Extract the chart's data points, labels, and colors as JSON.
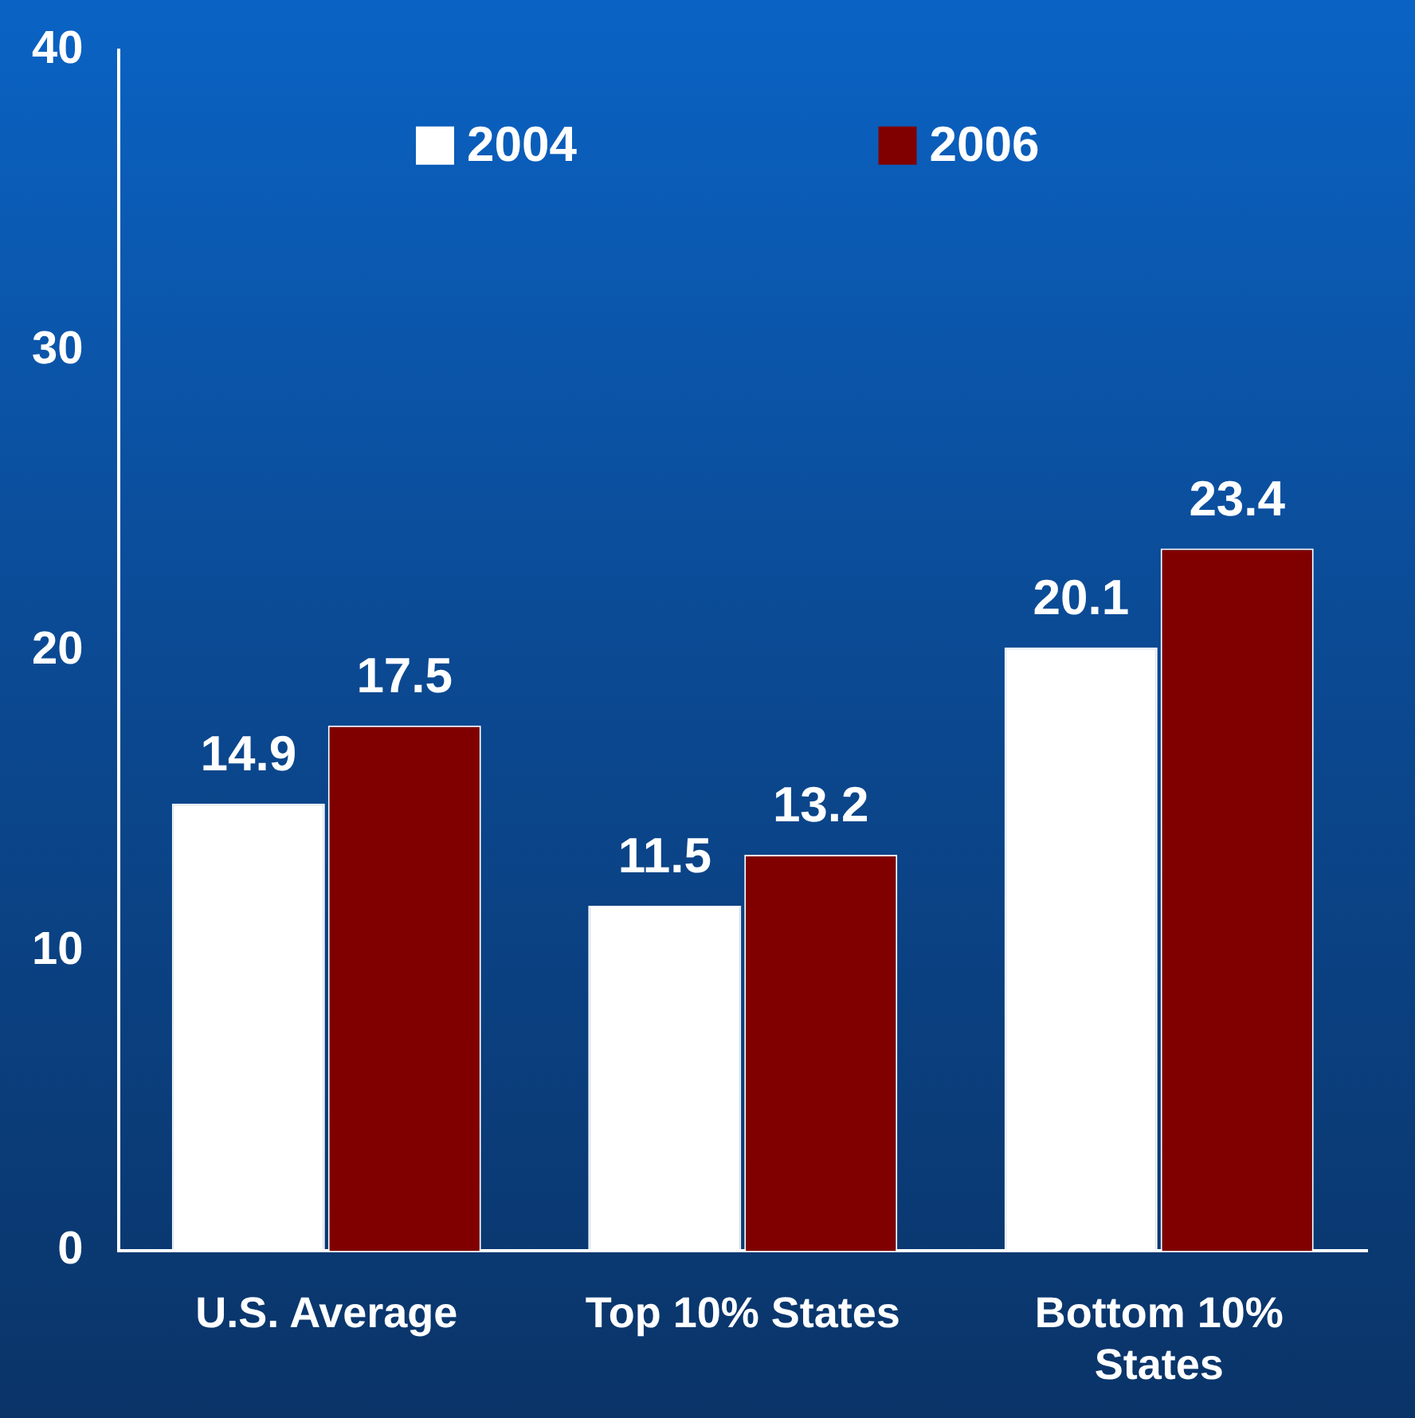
{
  "chart_data": {
    "type": "bar",
    "categories": [
      "U.S. Average",
      "Top 10% States",
      "Bottom 10% States"
    ],
    "series": [
      {
        "name": "2004",
        "color": "#ffffff",
        "values": [
          14.9,
          11.5,
          20.1
        ]
      },
      {
        "name": "2006",
        "color": "#800000",
        "values": [
          17.5,
          13.2,
          23.4
        ]
      }
    ],
    "ylim": [
      0,
      40
    ],
    "yticks": [
      0,
      10,
      20,
      30,
      40
    ],
    "grid": false,
    "legend": "top",
    "data_labels": true
  }
}
